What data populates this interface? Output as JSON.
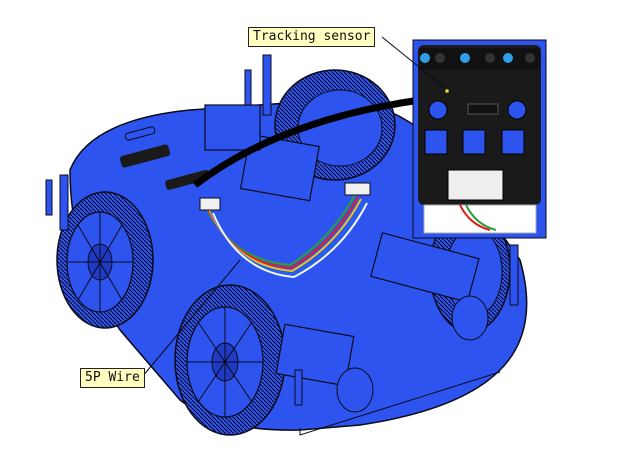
{
  "labels": {
    "tracking_sensor": "Tracking sensor",
    "wire": "5P Wire"
  },
  "colors": {
    "chassis": "#2e54f0",
    "chassis_dark": "#1f3ac4",
    "outline": "#0a0a1a",
    "sensor_board": "#1a1a1a",
    "wire_colors": [
      "#2e9e3a",
      "#e02020",
      "#f0c020",
      "#1e66e8",
      "#f5f5f5"
    ],
    "callout_bg": "#ffffc0"
  },
  "icons": [
    "wheel-icon",
    "motor-icon",
    "standoff-icon",
    "sensor-board-icon"
  ]
}
